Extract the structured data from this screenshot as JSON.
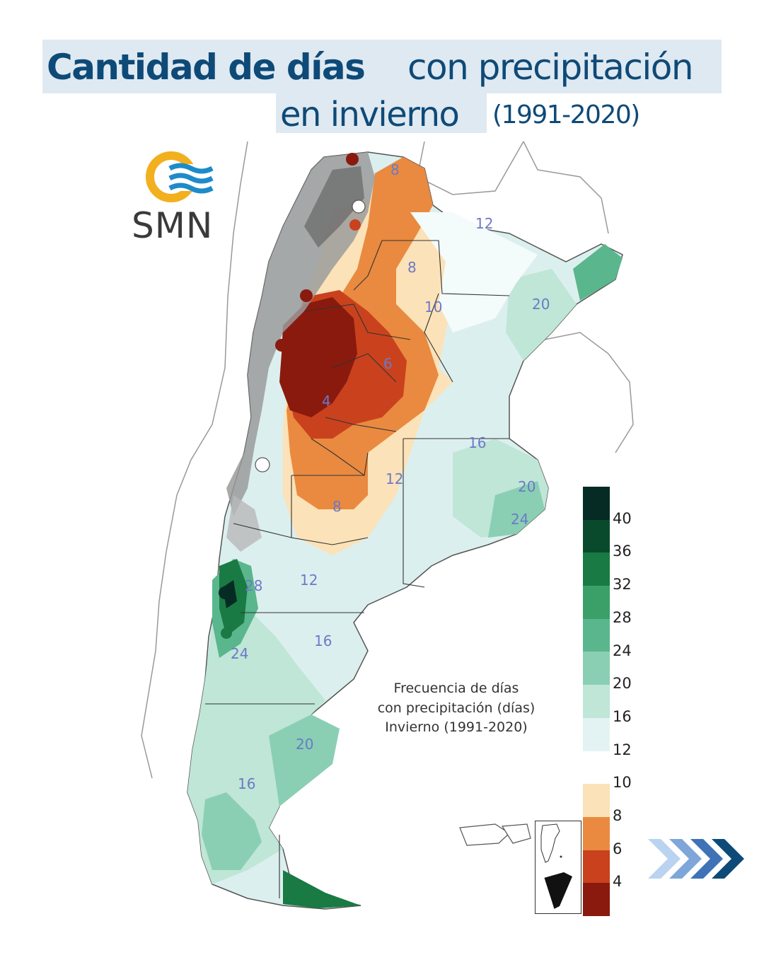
{
  "title": {
    "bold": "Cantidad de días",
    "light": "con precipitación",
    "line2": "en invierno",
    "years": "(1991-2020)"
  },
  "logo": {
    "text": "SMN",
    "icon": "smn-logo-icon"
  },
  "map_caption": [
    "Frecuencia de días",
    "con precipitación (días)",
    "Invierno (1991-2020)"
  ],
  "legend": {
    "colors": [
      "#062b24",
      "#0a4a2c",
      "#197a43",
      "#3aa067",
      "#5ab68c",
      "#8acfb3",
      "#bfe6d7",
      "#e3f3f3",
      "#ffffff",
      "#fbe2b8",
      "#e98a40",
      "#c9421d",
      "#8a1a0e"
    ],
    "ticks": [
      "40",
      "36",
      "32",
      "28",
      "24",
      "20",
      "16",
      "12",
      "10",
      "8",
      "6",
      "4"
    ]
  },
  "contour_labels": [
    "8",
    "12",
    "8",
    "10",
    "20",
    "6",
    "4",
    "16",
    "12",
    "20",
    "24",
    "8",
    "12",
    "28",
    "16",
    "24",
    "20",
    "16"
  ],
  "accent_color": "#0e4a78"
}
